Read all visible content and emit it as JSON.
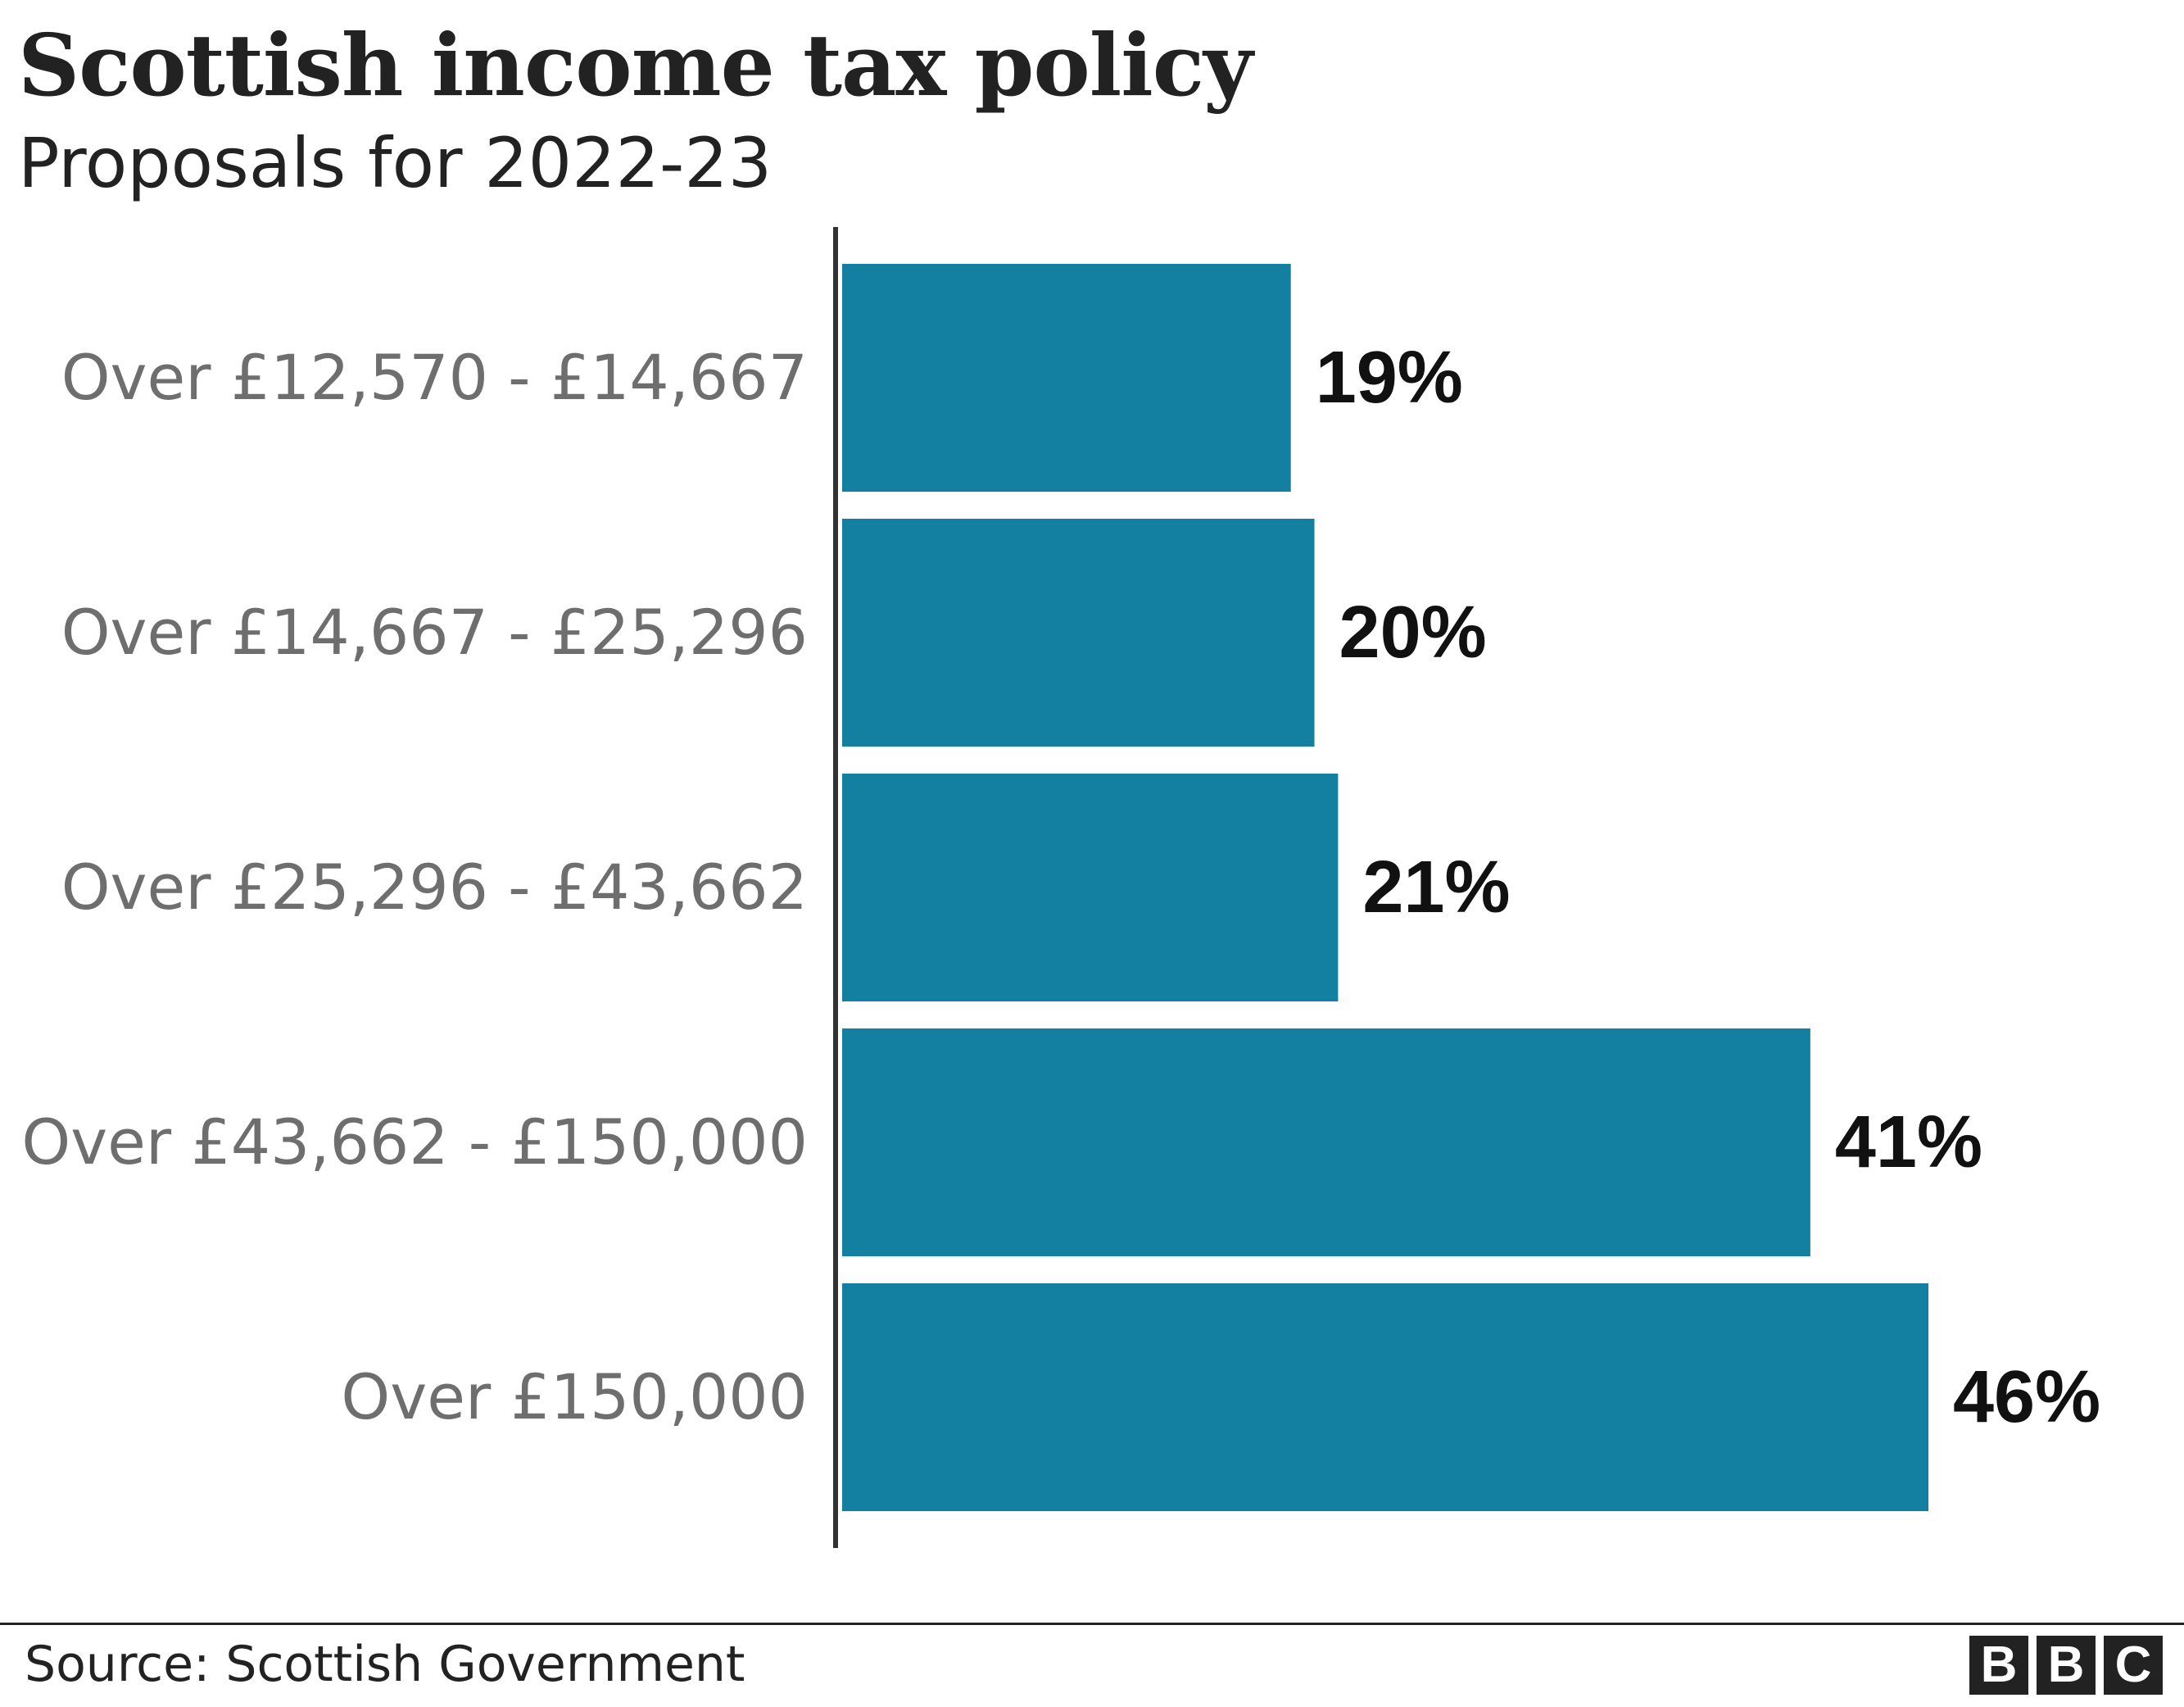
{
  "header": {
    "title": "Scottish income tax policy",
    "subtitle": "Proposals for 2022-23"
  },
  "footer": {
    "source": "Source: Scottish Government",
    "logo_letters": [
      "B",
      "B",
      "C"
    ]
  },
  "colors": {
    "bar": "#1380a1",
    "axis": "#333333",
    "category_label": "#6e6e6e",
    "value_label": "#111111"
  },
  "chart_data": {
    "type": "bar",
    "orientation": "horizontal",
    "title": "Scottish income tax policy",
    "subtitle": "Proposals for 2022-23",
    "categories": [
      "Over £12,570 - £14,667",
      "Over £14,667 - £25,296",
      "Over £25,296 - £43,662",
      "Over £43,662 - £150,000",
      "Over £150,000"
    ],
    "values": [
      19,
      20,
      21,
      41,
      46
    ],
    "value_labels": [
      "19%",
      "20%",
      "21%",
      "41%",
      "46%"
    ],
    "xlim": [
      0,
      46
    ],
    "grid": false,
    "legend": "none"
  }
}
